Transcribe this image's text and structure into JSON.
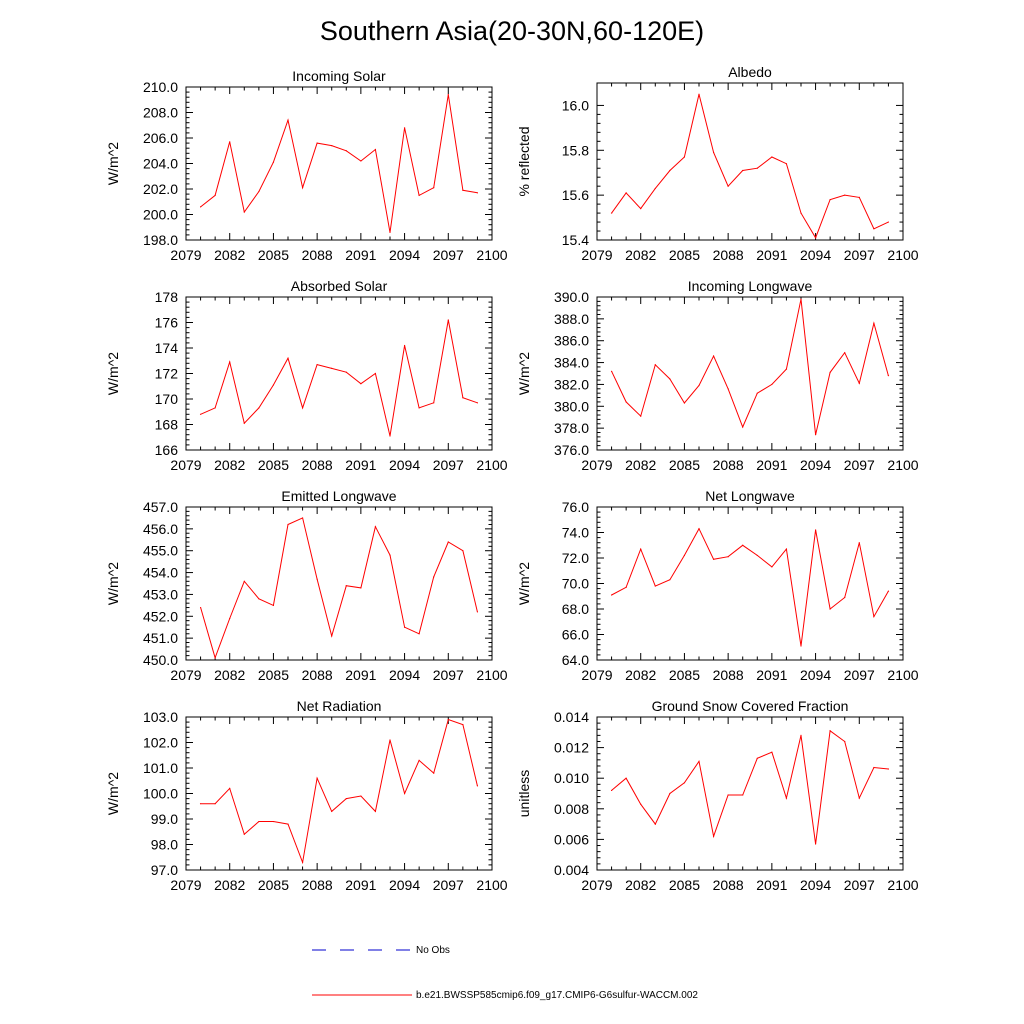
{
  "figure": {
    "title": "Southern Asia(20-30N,60-120E)"
  },
  "legend": {
    "obs_label": "No Obs",
    "model_label": "b.e21.BWSSP585cmip6.f09_g17.CMIP6-G6sulfur-WACCM.002",
    "obs_color": "#0000cc",
    "model_color": "#ff0000"
  },
  "chart_data": [
    {
      "type": "line",
      "title": "Incoming Solar",
      "ylabel": "W/m^2",
      "xlim": [
        2079,
        2100
      ],
      "ylim": [
        198.0,
        210.0
      ],
      "x_ticks": [
        "2079",
        "2082",
        "2085",
        "2088",
        "2091",
        "2094",
        "2097",
        "2100"
      ],
      "y_ticks": [
        "198.0",
        "200.0",
        "202.0",
        "204.0",
        "206.0",
        "208.0",
        "210.0"
      ],
      "x": [
        2080,
        2081,
        2082,
        2083,
        2084,
        2085,
        2086,
        2087,
        2088,
        2089,
        2090,
        2091,
        2092,
        2093,
        2094,
        2095,
        2096,
        2097,
        2098,
        2099
      ],
      "values": [
        200.6,
        201.5,
        205.7,
        200.2,
        201.8,
        204.1,
        207.4,
        202.1,
        205.6,
        205.4,
        205.0,
        204.2,
        205.1,
        198.6,
        206.8,
        201.5,
        202.1,
        209.4,
        201.9,
        201.7
      ]
    },
    {
      "type": "line",
      "title": "Albedo",
      "ylabel": "% reflected",
      "xlim": [
        2079,
        2100
      ],
      "ylim": [
        15.4,
        16.1
      ],
      "x_ticks": [
        "2079",
        "2082",
        "2085",
        "2088",
        "2091",
        "2094",
        "2097",
        "2100"
      ],
      "y_ticks": [
        "15.4",
        "15.6",
        "15.8",
        "16.0"
      ],
      "x": [
        2080,
        2081,
        2082,
        2083,
        2084,
        2085,
        2086,
        2087,
        2088,
        2089,
        2090,
        2091,
        2092,
        2093,
        2094,
        2095,
        2096,
        2097,
        2098,
        2099
      ],
      "values": [
        15.52,
        15.61,
        15.54,
        15.63,
        15.71,
        15.77,
        16.05,
        15.79,
        15.64,
        15.71,
        15.72,
        15.77,
        15.74,
        15.52,
        15.41,
        15.58,
        15.6,
        15.59,
        15.45,
        15.48
      ]
    },
    {
      "type": "line",
      "title": "Absorbed Solar",
      "ylabel": "W/m^2",
      "xlim": [
        2079,
        2100
      ],
      "ylim": [
        166,
        178
      ],
      "x_ticks": [
        "2079",
        "2082",
        "2085",
        "2088",
        "2091",
        "2094",
        "2097",
        "2100"
      ],
      "y_ticks": [
        "166",
        "168",
        "170",
        "172",
        "174",
        "176",
        "178"
      ],
      "x": [
        2080,
        2081,
        2082,
        2083,
        2084,
        2085,
        2086,
        2087,
        2088,
        2089,
        2090,
        2091,
        2092,
        2093,
        2094,
        2095,
        2096,
        2097,
        2098,
        2099
      ],
      "values": [
        168.8,
        169.3,
        172.9,
        168.1,
        169.3,
        171.1,
        173.2,
        169.3,
        172.7,
        172.4,
        172.1,
        171.2,
        172.0,
        167.1,
        174.2,
        169.3,
        169.7,
        176.2,
        170.1,
        169.7
      ]
    },
    {
      "type": "line",
      "title": "Incoming Longwave",
      "ylabel": "W/m^2",
      "xlim": [
        2079,
        2100
      ],
      "ylim": [
        376.0,
        390.0
      ],
      "x_ticks": [
        "2079",
        "2082",
        "2085",
        "2088",
        "2091",
        "2094",
        "2097",
        "2100"
      ],
      "y_ticks": [
        "376.0",
        "378.0",
        "380.0",
        "382.0",
        "384.0",
        "386.0",
        "388.0",
        "390.0"
      ],
      "x": [
        2080,
        2081,
        2082,
        2083,
        2084,
        2085,
        2086,
        2087,
        2088,
        2089,
        2090,
        2091,
        2092,
        2093,
        2094,
        2095,
        2096,
        2097,
        2098,
        2099
      ],
      "values": [
        383.2,
        380.4,
        379.1,
        383.8,
        382.5,
        380.3,
        381.9,
        384.6,
        381.6,
        378.1,
        381.2,
        382.0,
        383.4,
        389.8,
        377.4,
        383.1,
        384.9,
        382.1,
        387.6,
        382.8
      ]
    },
    {
      "type": "line",
      "title": "Emitted Longwave",
      "ylabel": "W/m^2",
      "xlim": [
        2079,
        2100
      ],
      "ylim": [
        450.0,
        457.0
      ],
      "x_ticks": [
        "2079",
        "2082",
        "2085",
        "2088",
        "2091",
        "2094",
        "2097",
        "2100"
      ],
      "y_ticks": [
        "450.0",
        "451.0",
        "452.0",
        "453.0",
        "454.0",
        "455.0",
        "456.0",
        "457.0"
      ],
      "x": [
        2080,
        2081,
        2082,
        2083,
        2084,
        2085,
        2086,
        2087,
        2088,
        2089,
        2090,
        2091,
        2092,
        2093,
        2094,
        2095,
        2096,
        2097,
        2098,
        2099
      ],
      "values": [
        452.4,
        450.1,
        451.9,
        453.6,
        452.8,
        452.5,
        456.2,
        456.5,
        453.7,
        451.1,
        453.4,
        453.3,
        456.1,
        454.8,
        451.5,
        451.2,
        453.8,
        455.4,
        455.0,
        452.2
      ]
    },
    {
      "type": "line",
      "title": "Net Longwave",
      "ylabel": "W/m^2",
      "xlim": [
        2079,
        2100
      ],
      "ylim": [
        64.0,
        76.0
      ],
      "x_ticks": [
        "2079",
        "2082",
        "2085",
        "2088",
        "2091",
        "2094",
        "2097",
        "2100"
      ],
      "y_ticks": [
        "64.0",
        "66.0",
        "68.0",
        "70.0",
        "72.0",
        "74.0",
        "76.0"
      ],
      "x": [
        2080,
        2081,
        2082,
        2083,
        2084,
        2085,
        2086,
        2087,
        2088,
        2089,
        2090,
        2091,
        2092,
        2093,
        2094,
        2095,
        2096,
        2097,
        2098,
        2099
      ],
      "values": [
        69.1,
        69.7,
        72.7,
        69.8,
        70.3,
        72.2,
        74.3,
        71.9,
        72.1,
        73.0,
        72.2,
        71.3,
        72.7,
        65.1,
        74.2,
        68.0,
        68.9,
        73.2,
        67.4,
        69.4
      ]
    },
    {
      "type": "line",
      "title": "Net Radiation",
      "ylabel": "W/m^2",
      "xlim": [
        2079,
        2100
      ],
      "ylim": [
        97.0,
        103.0
      ],
      "x_ticks": [
        "2079",
        "2082",
        "2085",
        "2088",
        "2091",
        "2094",
        "2097",
        "2100"
      ],
      "y_ticks": [
        "97.0",
        "98.0",
        "99.0",
        "100.0",
        "101.0",
        "102.0",
        "103.0"
      ],
      "x": [
        2080,
        2081,
        2082,
        2083,
        2084,
        2085,
        2086,
        2087,
        2088,
        2089,
        2090,
        2091,
        2092,
        2093,
        2094,
        2095,
        2096,
        2097,
        2098,
        2099
      ],
      "values": [
        99.6,
        99.6,
        100.2,
        98.4,
        98.9,
        98.9,
        98.8,
        97.3,
        100.6,
        99.3,
        99.8,
        99.9,
        99.3,
        102.1,
        100.0,
        101.3,
        100.8,
        102.9,
        102.7,
        100.3
      ]
    },
    {
      "type": "line",
      "title": "Ground Snow Covered Fraction",
      "ylabel": "unitless",
      "xlim": [
        2079,
        2100
      ],
      "ylim": [
        0.004,
        0.014
      ],
      "x_ticks": [
        "2079",
        "2082",
        "2085",
        "2088",
        "2091",
        "2094",
        "2097",
        "2100"
      ],
      "y_ticks": [
        "0.004",
        "0.006",
        "0.008",
        "0.010",
        "0.012",
        "0.014"
      ],
      "x": [
        2080,
        2081,
        2082,
        2083,
        2084,
        2085,
        2086,
        2087,
        2088,
        2089,
        2090,
        2091,
        2092,
        2093,
        2094,
        2095,
        2096,
        2097,
        2098,
        2099
      ],
      "values": [
        0.0092,
        0.01,
        0.0083,
        0.007,
        0.009,
        0.0097,
        0.0111,
        0.0062,
        0.0089,
        0.0089,
        0.0113,
        0.0117,
        0.0087,
        0.0128,
        0.0057,
        0.0131,
        0.0124,
        0.0087,
        0.0107,
        0.0106
      ]
    }
  ]
}
